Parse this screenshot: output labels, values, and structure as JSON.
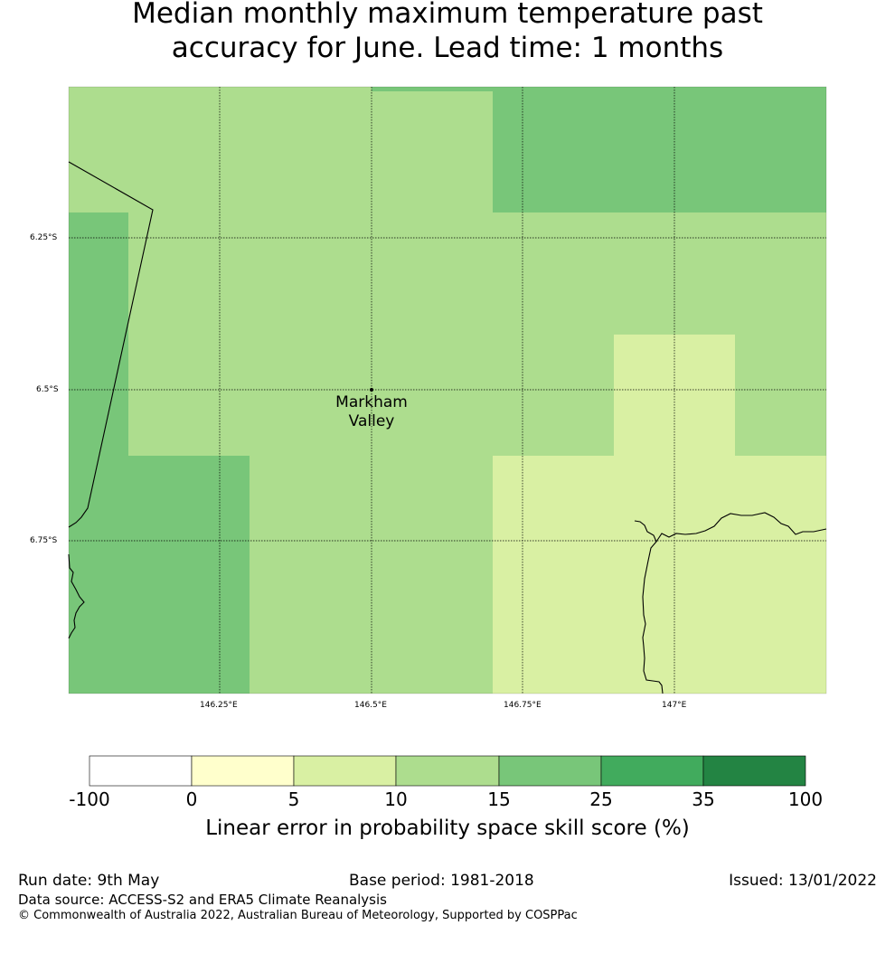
{
  "title_line1": "Median monthly maximum temperature past",
  "title_line2": "accuracy for June. Lead time: 1 months",
  "place": {
    "line1": "Markham",
    "line2": "Valley"
  },
  "lat_ticks": [
    "6.25°S",
    "6.5°S",
    "6.75°S"
  ],
  "lon_ticks": [
    "146.25°E",
    "146.5°E",
    "146.75°E",
    "147°E"
  ],
  "colorbar": {
    "ticks": [
      "-100",
      "0",
      "5",
      "10",
      "15",
      "25",
      "35",
      "100"
    ],
    "colors": [
      "#ffffff",
      "#ffffcc",
      "#d9f0a3",
      "#addd8e",
      "#78c679",
      "#41ab5d",
      "#238443"
    ],
    "label": "Linear error in probability space skill score (%)"
  },
  "footer": {
    "run_date": "Run date: 9th May",
    "base_period": "Base period: 1981-2018",
    "issued": "Issued: 13/01/2022",
    "data_source": "Data source: ACCESS-S2 and ERA5 Climate Reanalysis",
    "copyright": "© Commonwealth of Australia 2022, Australian Bureau of Meteorology, Supported by COSPPac"
  }
}
